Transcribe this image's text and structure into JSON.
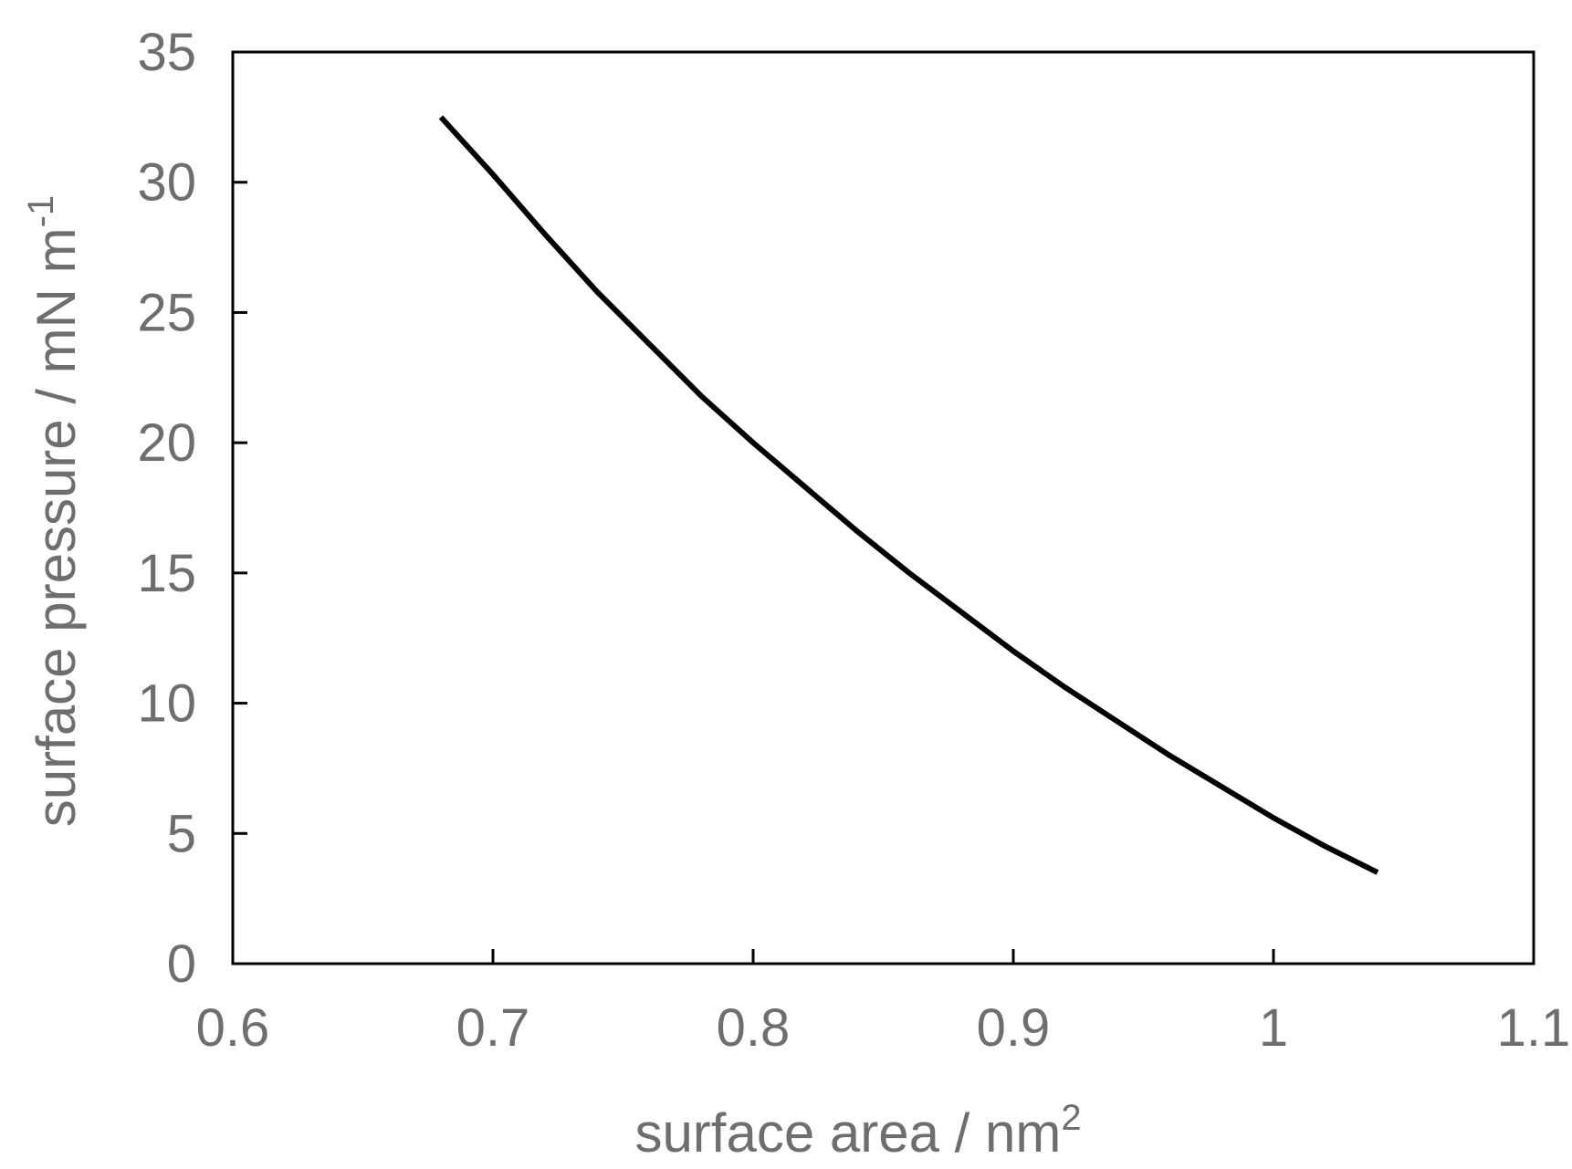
{
  "chart_data": {
    "type": "line",
    "xlabel": "surface area / nm",
    "xlabel_superscript": "2",
    "ylabel": "surface pressure / mN m",
    "ylabel_superscript": "-1",
    "xlim": [
      0.6,
      1.1
    ],
    "ylim": [
      0,
      35
    ],
    "xticks": [
      0.6,
      0.7,
      0.8,
      0.9,
      1.0,
      1.1
    ],
    "xtick_labels": [
      "0.6",
      "0.7",
      "0.8",
      "0.9",
      "1",
      "1.1"
    ],
    "yticks": [
      0,
      5,
      10,
      15,
      20,
      25,
      30,
      35
    ],
    "ytick_labels": [
      "0",
      "5",
      "10",
      "15",
      "20",
      "25",
      "30",
      "35"
    ],
    "grid": false,
    "series": [
      {
        "color": "#000000",
        "x": [
          0.68,
          0.7,
          0.72,
          0.74,
          0.76,
          0.78,
          0.8,
          0.82,
          0.84,
          0.86,
          0.88,
          0.9,
          0.92,
          0.94,
          0.96,
          0.98,
          1.0,
          1.02,
          1.04
        ],
        "y": [
          32.5,
          30.3,
          28.0,
          25.8,
          23.8,
          21.8,
          20.0,
          18.3,
          16.6,
          15.0,
          13.5,
          12.0,
          10.6,
          9.3,
          8.0,
          6.8,
          5.6,
          4.5,
          3.5
        ]
      }
    ]
  }
}
